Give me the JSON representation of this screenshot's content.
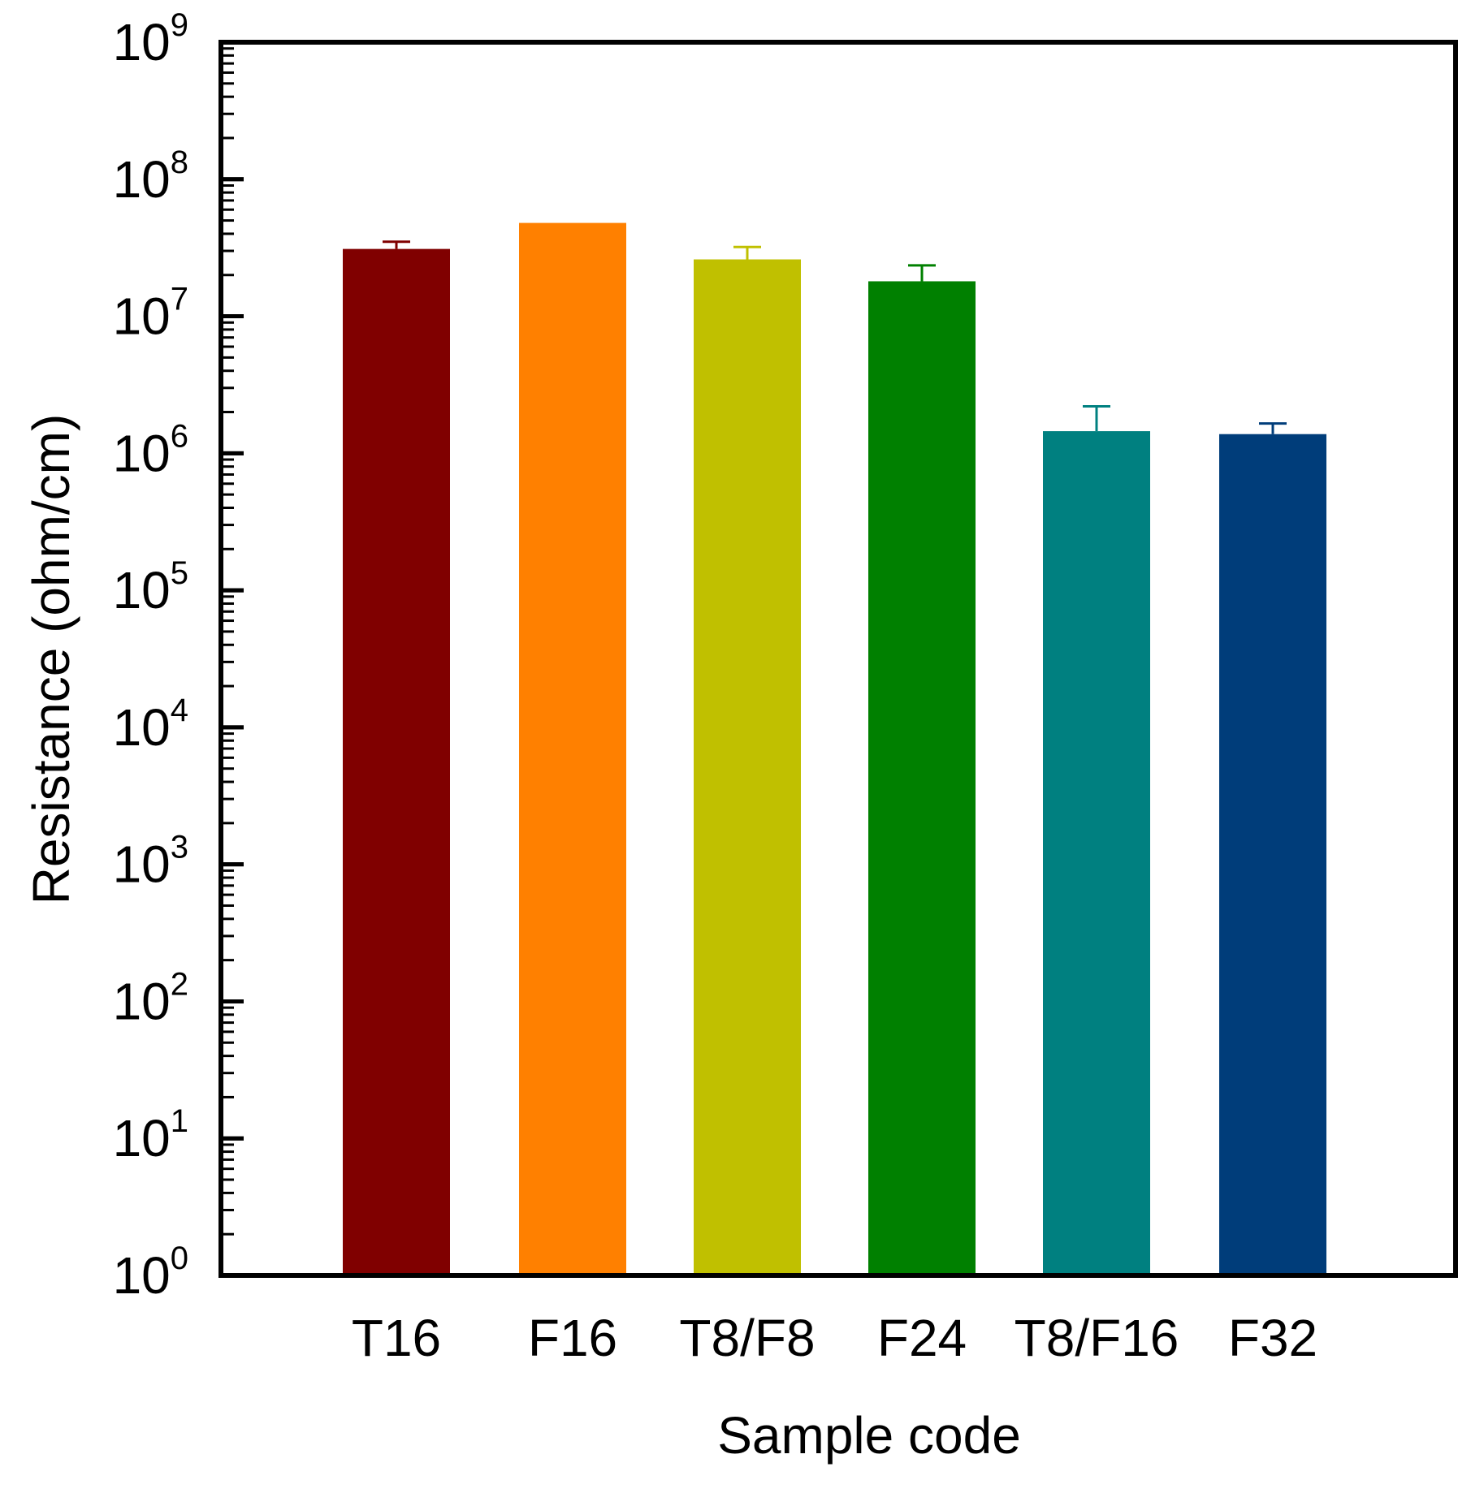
{
  "chart_data": {
    "type": "bar",
    "title": "",
    "xlabel": "Sample code",
    "ylabel": "Resistance (ohm/cm)",
    "yscale": "log",
    "ylim": [
      1,
      1000000000
    ],
    "yticks": [
      {
        "base": "10",
        "exp": "0"
      },
      {
        "base": "10",
        "exp": "1"
      },
      {
        "base": "10",
        "exp": "2"
      },
      {
        "base": "10",
        "exp": "3"
      },
      {
        "base": "10",
        "exp": "4"
      },
      {
        "base": "10",
        "exp": "5"
      },
      {
        "base": "10",
        "exp": "6"
      },
      {
        "base": "10",
        "exp": "7"
      },
      {
        "base": "10",
        "exp": "8"
      },
      {
        "base": "10",
        "exp": "9"
      }
    ],
    "grid": false,
    "legend": "none",
    "categories": [
      "T16",
      "F16",
      "T8/F8",
      "F24",
      "T8/F16",
      "F32"
    ],
    "values": [
      31000000,
      48000000,
      26000000,
      18000000,
      1450000,
      1380000
    ],
    "error_upper": [
      35000000,
      48000000,
      32000000,
      23500000,
      2200000,
      1650000
    ],
    "colors": [
      "#800000",
      "#ff8000",
      "#c0c000",
      "#008000",
      "#008080",
      "#003d7a"
    ]
  }
}
